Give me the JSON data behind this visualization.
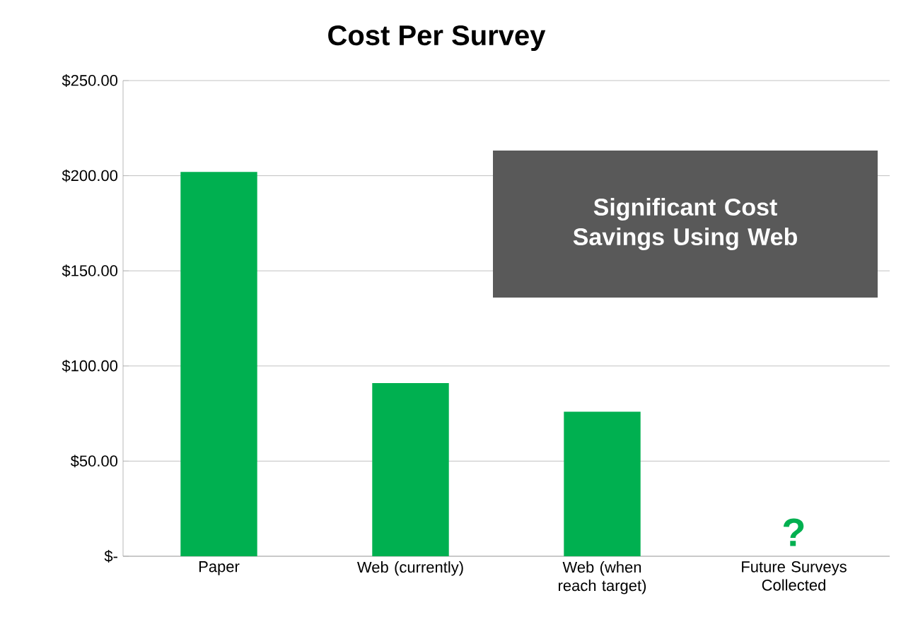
{
  "chart_data": {
    "type": "bar",
    "title": "Cost Per Survey",
    "categories": [
      "Paper",
      "Web (currently)",
      "Web (when reach target)",
      "Future Surveys Collected"
    ],
    "values": [
      202,
      91,
      76,
      null
    ],
    "color": "#00b050",
    "ylim": [
      0,
      250
    ],
    "yticks": [
      {
        "value": 0,
        "label": "$-"
      },
      {
        "value": 50,
        "label": "$50.00"
      },
      {
        "value": 100,
        "label": "$100.00"
      },
      {
        "value": 150,
        "label": "$150.00"
      },
      {
        "value": 200,
        "label": "$200.00"
      },
      {
        "value": 250,
        "label": "$250.00"
      }
    ],
    "grid": "y",
    "annotations": [
      "Significant Cost Savings Using Web",
      "?"
    ]
  }
}
